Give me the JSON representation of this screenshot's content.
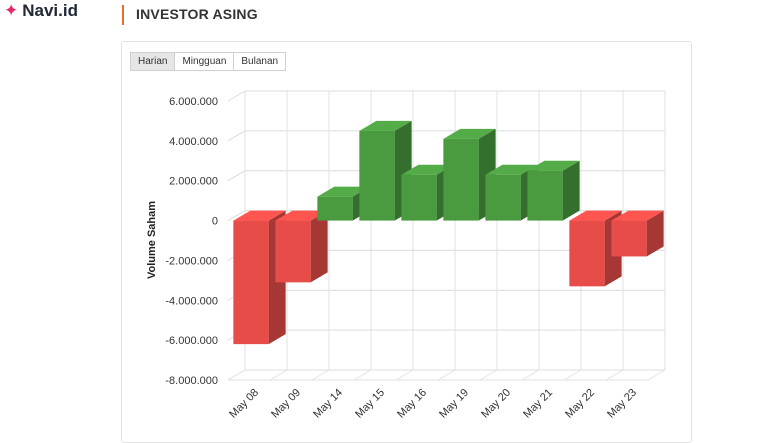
{
  "brand": {
    "name": "Navi.id",
    "icon": "sparkle-icon",
    "color": "#e8266d"
  },
  "section": {
    "title": "INVESTOR ASING",
    "accent": "#f26b2a"
  },
  "tabs": [
    {
      "label": "Harian",
      "active": true
    },
    {
      "label": "Mingguan",
      "active": false
    },
    {
      "label": "Bulanan",
      "active": false
    }
  ],
  "chart_data": {
    "type": "bar",
    "three_d": true,
    "grid": true,
    "ylabel": "Volume Saham",
    "ylim": [
      -8000000,
      6000000
    ],
    "yticks": [
      6000000,
      4000000,
      2000000,
      0,
      -2000000,
      -4000000,
      -6000000,
      -8000000
    ],
    "ytick_labels": [
      "6.000.000",
      "4.000.000",
      "2.000.000",
      "0",
      "-2.000.000",
      "-4.000.000",
      "-6.000.000",
      "-8.000.000"
    ],
    "categories": [
      "May 08",
      "May 09",
      "May 14",
      "May 15",
      "May 16",
      "May 19",
      "May 20",
      "May 21",
      "May 22",
      "May 23"
    ],
    "values": [
      -6200000,
      -3100000,
      1200000,
      4500000,
      2300000,
      4100000,
      2300000,
      2500000,
      -3300000,
      -1800000
    ],
    "colors": {
      "positive": "#4a9a3f",
      "negative": "#e84c48"
    }
  }
}
